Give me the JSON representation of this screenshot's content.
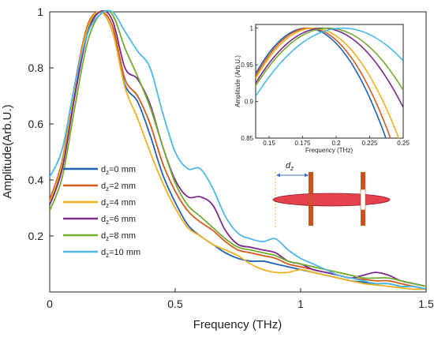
{
  "chart_data": [
    {
      "type": "line",
      "title": "",
      "xlabel": "Frequency (THz)",
      "ylabel": "Amplitude(Arb.U.)",
      "xlim": [
        0,
        1.5
      ],
      "ylim": [
        0,
        1.0
      ],
      "x_ticks": [
        "0",
        "0.5",
        "1",
        "1.5"
      ],
      "y_ticks": [
        "0.2",
        "0.4",
        "0.6",
        "0.8",
        "1"
      ],
      "grid": false,
      "legend_position": "center-left",
      "series": [
        {
          "name_prefix": "d",
          "name_sub": "z",
          "name_suffix": "=0 mm",
          "color": "#1f63b5",
          "x": [
            0,
            0.05,
            0.1,
            0.15,
            0.2,
            0.25,
            0.3,
            0.35,
            0.4,
            0.45,
            0.5,
            0.55,
            0.6,
            0.65,
            0.7,
            0.75,
            0.8,
            0.85,
            0.9,
            0.95,
            1.0,
            1.05,
            1.1,
            1.15,
            1.2,
            1.25,
            1.3,
            1.35,
            1.4,
            1.45,
            1.5
          ],
          "y": [
            0.32,
            0.45,
            0.72,
            0.93,
            1.0,
            0.93,
            0.74,
            0.68,
            0.56,
            0.42,
            0.32,
            0.24,
            0.2,
            0.17,
            0.14,
            0.12,
            0.11,
            0.11,
            0.1,
            0.09,
            0.08,
            0.07,
            0.06,
            0.05,
            0.04,
            0.035,
            0.03,
            0.03,
            0.02,
            0.02,
            0.01
          ]
        },
        {
          "name_prefix": "d",
          "name_sub": "z",
          "name_suffix": "=2 mm",
          "color": "#d65a1e",
          "x": [
            0,
            0.05,
            0.1,
            0.15,
            0.2,
            0.25,
            0.3,
            0.35,
            0.4,
            0.45,
            0.5,
            0.55,
            0.6,
            0.65,
            0.7,
            0.75,
            0.8,
            0.85,
            0.9,
            0.95,
            1.0,
            1.05,
            1.1,
            1.15,
            1.2,
            1.25,
            1.3,
            1.35,
            1.4,
            1.45,
            1.5
          ],
          "y": [
            0.33,
            0.47,
            0.74,
            0.95,
            1.0,
            0.95,
            0.76,
            0.7,
            0.6,
            0.46,
            0.36,
            0.29,
            0.25,
            0.22,
            0.18,
            0.15,
            0.14,
            0.13,
            0.12,
            0.1,
            0.09,
            0.08,
            0.07,
            0.06,
            0.05,
            0.045,
            0.04,
            0.04,
            0.03,
            0.02,
            0.01
          ]
        },
        {
          "name_prefix": "d",
          "name_sub": "z",
          "name_suffix": "=4 mm",
          "color": "#efb021",
          "x": [
            0,
            0.05,
            0.1,
            0.15,
            0.2,
            0.25,
            0.3,
            0.35,
            0.4,
            0.45,
            0.5,
            0.55,
            0.6,
            0.65,
            0.7,
            0.75,
            0.8,
            0.85,
            0.9,
            0.95,
            1.0,
            1.05,
            1.1,
            1.15,
            1.2,
            1.25,
            1.3,
            1.35,
            1.4,
            1.45,
            1.5
          ],
          "y": [
            0.32,
            0.46,
            0.73,
            0.94,
            1.0,
            0.93,
            0.73,
            0.62,
            0.5,
            0.39,
            0.3,
            0.23,
            0.2,
            0.17,
            0.15,
            0.13,
            0.1,
            0.08,
            0.07,
            0.07,
            0.08,
            0.07,
            0.06,
            0.05,
            0.04,
            0.03,
            0.025,
            0.02,
            0.015,
            0.01,
            0.01
          ]
        },
        {
          "name_prefix": "d",
          "name_sub": "z",
          "name_suffix": "=6 mm",
          "color": "#7b2a8c",
          "x": [
            0,
            0.05,
            0.1,
            0.15,
            0.2,
            0.25,
            0.3,
            0.35,
            0.4,
            0.45,
            0.5,
            0.55,
            0.6,
            0.65,
            0.7,
            0.75,
            0.8,
            0.85,
            0.9,
            0.95,
            1.0,
            1.05,
            1.1,
            1.15,
            1.2,
            1.25,
            1.3,
            1.35,
            1.4,
            1.45,
            1.5
          ],
          "y": [
            0.31,
            0.44,
            0.7,
            0.92,
            1.0,
            0.97,
            0.8,
            0.76,
            0.67,
            0.52,
            0.4,
            0.34,
            0.34,
            0.31,
            0.22,
            0.17,
            0.16,
            0.15,
            0.14,
            0.11,
            0.1,
            0.08,
            0.07,
            0.06,
            0.05,
            0.06,
            0.07,
            0.06,
            0.04,
            0.03,
            0.02
          ]
        },
        {
          "name_prefix": "d",
          "name_sub": "z",
          "name_suffix": "=8 mm",
          "color": "#72ac2e",
          "x": [
            0,
            0.05,
            0.1,
            0.15,
            0.2,
            0.25,
            0.3,
            0.35,
            0.4,
            0.45,
            0.5,
            0.55,
            0.6,
            0.65,
            0.7,
            0.75,
            0.8,
            0.85,
            0.9,
            0.95,
            1.0,
            1.05,
            1.1,
            1.15,
            1.2,
            1.25,
            1.3,
            1.35,
            1.4,
            1.45,
            1.5
          ],
          "y": [
            0.29,
            0.41,
            0.66,
            0.89,
            0.99,
            0.99,
            0.87,
            0.77,
            0.66,
            0.52,
            0.39,
            0.31,
            0.27,
            0.23,
            0.19,
            0.16,
            0.15,
            0.14,
            0.13,
            0.11,
            0.1,
            0.09,
            0.08,
            0.07,
            0.06,
            0.05,
            0.05,
            0.05,
            0.04,
            0.03,
            0.02
          ]
        },
        {
          "name_prefix": "d",
          "name_sub": "z",
          "name_suffix": "=10 mm",
          "color": "#4bb8e6",
          "x": [
            0,
            0.05,
            0.1,
            0.15,
            0.2,
            0.25,
            0.3,
            0.35,
            0.4,
            0.45,
            0.5,
            0.55,
            0.6,
            0.65,
            0.7,
            0.75,
            0.8,
            0.85,
            0.9,
            0.95,
            1.0,
            1.05,
            1.1,
            1.15,
            1.2,
            1.25,
            1.3,
            1.35,
            1.4,
            1.45,
            1.5
          ],
          "y": [
            0.41,
            0.51,
            0.74,
            0.92,
            0.99,
            1.0,
            0.93,
            0.86,
            0.8,
            0.64,
            0.5,
            0.44,
            0.44,
            0.37,
            0.27,
            0.21,
            0.19,
            0.18,
            0.19,
            0.15,
            0.12,
            0.1,
            0.08,
            0.06,
            0.05,
            0.04,
            0.03,
            0.03,
            0.02,
            0.02,
            0.01
          ]
        }
      ]
    },
    {
      "type": "line",
      "title": "",
      "xlabel": "Frequency (THz)",
      "ylabel": "Amplitude (Arb.U.)",
      "xlim": [
        0.14,
        0.25
      ],
      "ylim": [
        0.85,
        1.005
      ],
      "x_ticks": [
        "0.15",
        "0.175",
        "0.2",
        "0.225",
        "0.25"
      ],
      "y_ticks": [
        "0.85",
        "0.9",
        "0.95",
        "1"
      ],
      "series": [
        {
          "color": "#1f63b5",
          "peak_x": 0.178,
          "curvature": 43
        },
        {
          "color": "#d65a1e",
          "peak_x": 0.18,
          "curvature": 41
        },
        {
          "color": "#efb021",
          "peak_x": 0.183,
          "curvature": 37
        },
        {
          "color": "#7b2a8c",
          "peak_x": 0.19,
          "curvature": 30
        },
        {
          "color": "#72ac2e",
          "peak_x": 0.194,
          "curvature": 27
        },
        {
          "color": "#4bb8e6",
          "peak_x": 0.205,
          "curvature": 22
        }
      ]
    }
  ],
  "schematic": {
    "label_prefix": "d",
    "label_sub": "z",
    "ellipse_color": "#e5414f",
    "plate_color": "#c9531d",
    "arrow_color": "#3f6fd1"
  }
}
